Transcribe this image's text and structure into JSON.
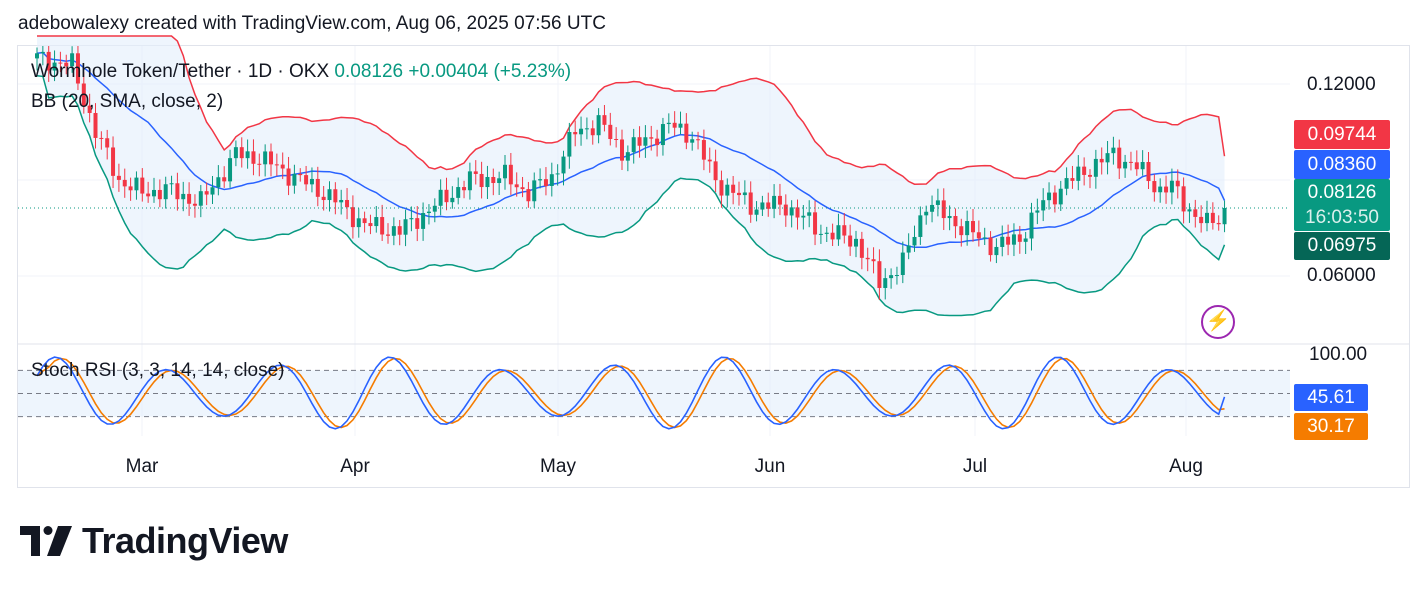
{
  "header": {
    "credit": "adebowalexy created with TradingView.com, Aug 06, 2025 07:56 UTC"
  },
  "legend": {
    "symbol": "Wormhole Token/Tether · 1D · OKX",
    "last": "0.08126",
    "change": "+0.00404 (+5.23%)",
    "bb": "BB (20, SMA, close, 2)",
    "stoch": "Stoch RSI (3, 3, 14, 14, close)"
  },
  "price_axis": {
    "ticks": [
      "0.12000",
      "0.06000"
    ],
    "labels": {
      "bb_upper": "0.09744",
      "bb_basis": "0.08360",
      "last": "0.08126",
      "countdown": "16:03:50",
      "bb_lower": "0.06975"
    }
  },
  "stoch_axis": {
    "top": "100.00",
    "k": "45.61",
    "d": "30.17"
  },
  "time_axis": [
    "Mar",
    "Apr",
    "May",
    "Jun",
    "Jul",
    "Aug"
  ],
  "colors": {
    "up": "#089981",
    "down": "#f23645",
    "bb_upper": "#f23645",
    "bb_basis": "#2962ff",
    "bb_lower": "#089981",
    "stoch_k": "#2962ff",
    "stoch_d": "#f57c00",
    "countdown_bg": "#089981"
  },
  "icons": {
    "logo": "tradingview-logo-icon",
    "alert": "lightning-bolt-icon"
  },
  "brand": "TradingView",
  "chart_data": {
    "type": "candlestick",
    "panes": [
      "price",
      "stoch_rsi"
    ],
    "y_scale": "linear",
    "ylim": [
      0.045,
      0.135
    ],
    "stoch_ylim": [
      0,
      100
    ],
    "stoch_bands": [
      80,
      50,
      20
    ],
    "dates_start": "2025-02-17",
    "dates_end": "2025-08-06",
    "close_start": 0.128,
    "close_points": [
      [
        0,
        0.128
      ],
      [
        6,
        0.126
      ],
      [
        10,
        0.105
      ],
      [
        14,
        0.09
      ],
      [
        18,
        0.086
      ],
      [
        22,
        0.087
      ],
      [
        28,
        0.083
      ],
      [
        34,
        0.098
      ],
      [
        38,
        0.097
      ],
      [
        44,
        0.091
      ],
      [
        50,
        0.085
      ],
      [
        56,
        0.076
      ],
      [
        62,
        0.074
      ],
      [
        68,
        0.082
      ],
      [
        74,
        0.09
      ],
      [
        80,
        0.091
      ],
      [
        84,
        0.086
      ],
      [
        88,
        0.091
      ],
      [
        92,
        0.105
      ],
      [
        96,
        0.108
      ],
      [
        100,
        0.099
      ],
      [
        104,
        0.102
      ],
      [
        108,
        0.107
      ],
      [
        112,
        0.104
      ],
      [
        116,
        0.09
      ],
      [
        122,
        0.082
      ],
      [
        128,
        0.082
      ],
      [
        134,
        0.074
      ],
      [
        140,
        0.071
      ],
      [
        144,
        0.058
      ],
      [
        148,
        0.064
      ],
      [
        152,
        0.083
      ],
      [
        156,
        0.078
      ],
      [
        160,
        0.073
      ],
      [
        164,
        0.069
      ],
      [
        168,
        0.072
      ],
      [
        172,
        0.083
      ],
      [
        176,
        0.089
      ],
      [
        180,
        0.094
      ],
      [
        184,
        0.098
      ],
      [
        188,
        0.094
      ],
      [
        192,
        0.087
      ],
      [
        194,
        0.088
      ],
      [
        196,
        0.083
      ],
      [
        198,
        0.079
      ],
      [
        200,
        0.076
      ],
      [
        202,
        0.078
      ],
      [
        203,
        0.08126
      ]
    ],
    "last": {
      "close": 0.08126,
      "change": 0.00404,
      "change_pct": 5.23
    },
    "bollinger": {
      "upper": 0.09744,
      "basis": 0.0836,
      "lower": 0.06975
    },
    "stoch_rsi_last": {
      "k": 45.61,
      "d": 30.17
    },
    "x_ticks": [
      "Mar",
      "Apr",
      "May",
      "Jun",
      "Jul",
      "Aug"
    ]
  }
}
